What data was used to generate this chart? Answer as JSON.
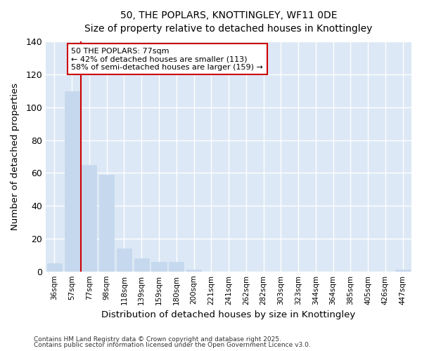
{
  "title_line1": "50, THE POPLARS, KNOTTINGLEY, WF11 0DE",
  "title_line2": "Size of property relative to detached houses in Knottingley",
  "xlabel": "Distribution of detached houses by size in Knottingley",
  "ylabel": "Number of detached properties",
  "categories": [
    "36sqm",
    "57sqm",
    "77sqm",
    "98sqm",
    "118sqm",
    "139sqm",
    "159sqm",
    "180sqm",
    "200sqm",
    "221sqm",
    "241sqm",
    "262sqm",
    "282sqm",
    "303sqm",
    "323sqm",
    "344sqm",
    "364sqm",
    "385sqm",
    "405sqm",
    "426sqm",
    "447sqm"
  ],
  "values": [
    5,
    110,
    65,
    59,
    14,
    8,
    6,
    6,
    1,
    0,
    0,
    0,
    0,
    0,
    0,
    0,
    0,
    0,
    0,
    0,
    1
  ],
  "bar_color": "#c5d8ee",
  "bar_edge_color": "#c5d8ee",
  "highlight_line_color": "#cc0000",
  "highlight_bar_index": 2,
  "box_text_line1": "50 THE POPLARS: 77sqm",
  "box_text_line2": "← 42% of detached houses are smaller (113)",
  "box_text_line3": "58% of semi-detached houses are larger (159) →",
  "box_edge_color": "#cc0000",
  "box_face_color": "white",
  "ylim": [
    0,
    140
  ],
  "yticks": [
    0,
    20,
    40,
    60,
    80,
    100,
    120,
    140
  ],
  "plot_bg_color": "#dce8f5",
  "fig_bg_color": "#ffffff",
  "grid_color": "#ffffff",
  "footer_line1": "Contains HM Land Registry data © Crown copyright and database right 2025.",
  "footer_line2": "Contains public sector information licensed under the Open Government Licence v3.0."
}
